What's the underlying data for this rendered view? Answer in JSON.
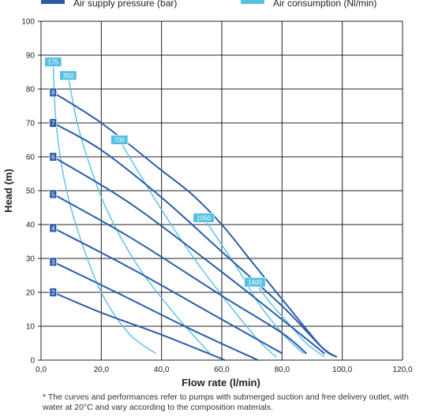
{
  "legend": {
    "pressure_label": "Air supply pressure (bar)",
    "consumption_label": "Air consumption (Nl/min)"
  },
  "colors": {
    "pressure": "#2a5caa",
    "consumption": "#54c1e3",
    "grid": "#222222"
  },
  "footnote": "* The curves and performances refer to pumps with submerged suction and free delivery outlet, with water at 20°C and vary according to the composition materials.",
  "chart_data": {
    "type": "line",
    "xlabel": "Flow rate (l/min)",
    "ylabel": "Head (m)",
    "xlim": [
      0,
      120
    ],
    "ylim": [
      0,
      100
    ],
    "x_ticks": [
      "0,0",
      "20,0",
      "40,0",
      "60,0",
      "80,0",
      "100,0",
      "120,0"
    ],
    "y_ticks": [
      "0",
      "10",
      "20",
      "30",
      "40",
      "50",
      "60",
      "70",
      "80",
      "90",
      "100"
    ],
    "grid": true,
    "series": [
      {
        "name": "2",
        "group": "pressure",
        "points": [
          [
            4,
            20
          ],
          [
            20,
            14
          ],
          [
            40,
            7.5
          ],
          [
            61,
            0
          ]
        ]
      },
      {
        "name": "3",
        "group": "pressure",
        "points": [
          [
            4,
            29
          ],
          [
            25,
            20
          ],
          [
            50,
            9
          ],
          [
            72,
            0
          ]
        ]
      },
      {
        "name": "4",
        "group": "pressure",
        "points": [
          [
            4,
            39
          ],
          [
            30,
            27
          ],
          [
            60,
            12
          ],
          [
            80,
            2
          ]
        ]
      },
      {
        "name": "5",
        "group": "pressure",
        "points": [
          [
            4,
            49
          ],
          [
            30,
            36
          ],
          [
            60,
            19
          ],
          [
            80,
            8
          ],
          [
            88,
            2
          ]
        ]
      },
      {
        "name": "6",
        "group": "pressure",
        "points": [
          [
            4,
            60
          ],
          [
            30,
            46
          ],
          [
            60,
            26
          ],
          [
            80,
            12
          ],
          [
            94,
            2
          ]
        ]
      },
      {
        "name": "7",
        "group": "pressure",
        "points": [
          [
            4,
            70
          ],
          [
            20,
            62
          ],
          [
            40,
            48
          ],
          [
            60,
            32
          ],
          [
            80,
            16
          ],
          [
            93,
            4
          ],
          [
            98,
            1
          ]
        ]
      },
      {
        "name": "8",
        "group": "pressure",
        "points": [
          [
            4,
            79
          ],
          [
            20,
            70
          ],
          [
            40,
            56
          ],
          [
            50,
            49
          ],
          [
            60,
            40
          ],
          [
            70,
            29
          ],
          [
            80,
            18
          ],
          [
            93,
            4
          ],
          [
            98,
            1
          ]
        ]
      },
      {
        "name": "175",
        "group": "consumption",
        "points": [
          [
            4,
            88
          ],
          [
            5,
            70
          ],
          [
            8,
            52
          ],
          [
            13,
            36
          ],
          [
            20,
            20
          ],
          [
            29,
            8
          ],
          [
            38,
            2
          ]
        ]
      },
      {
        "name": "350",
        "group": "consumption",
        "points": [
          [
            9,
            84
          ],
          [
            12,
            70
          ],
          [
            16,
            58
          ],
          [
            22,
            44
          ],
          [
            32,
            28
          ],
          [
            44,
            14
          ],
          [
            56,
            2
          ]
        ]
      },
      {
        "name": "700",
        "group": "consumption",
        "points": [
          [
            26,
            65
          ],
          [
            34,
            53
          ],
          [
            41,
            43
          ],
          [
            50,
            31
          ],
          [
            61,
            18
          ],
          [
            72,
            6
          ],
          [
            78,
            1
          ]
        ]
      },
      {
        "name": "1050",
        "group": "consumption",
        "points": [
          [
            54,
            42
          ],
          [
            60,
            34
          ],
          [
            66,
            26
          ],
          [
            72,
            17
          ],
          [
            80,
            8
          ],
          [
            87,
            2
          ]
        ]
      },
      {
        "name": "1400",
        "group": "consumption",
        "points": [
          [
            71,
            23
          ],
          [
            76,
            17
          ],
          [
            82,
            11
          ],
          [
            88,
            5
          ],
          [
            94,
            1
          ]
        ]
      }
    ]
  }
}
